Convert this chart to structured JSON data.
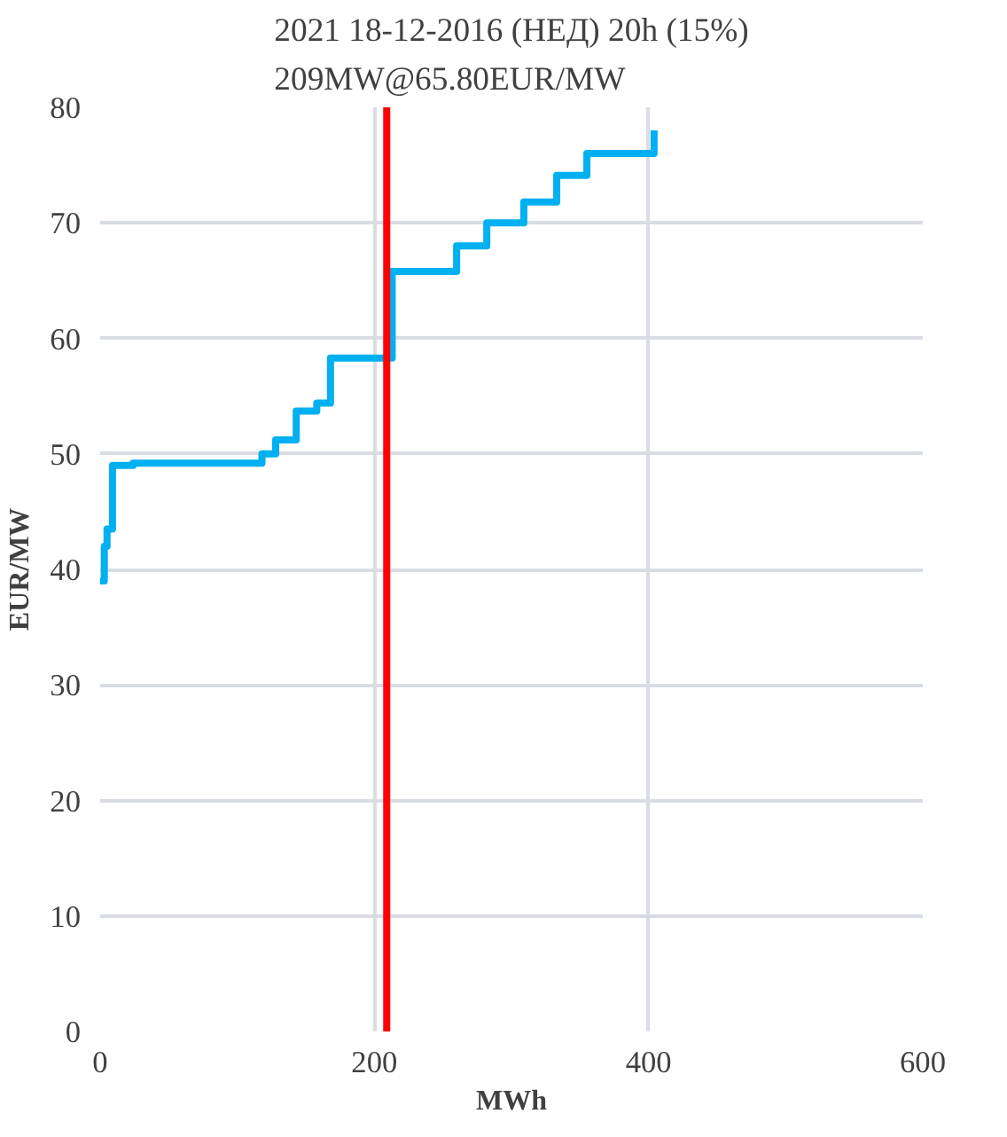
{
  "chart_data": {
    "type": "step",
    "title": "2021 18-12-2016 (НЕД) 20h (15%)\n209MW@65.80EUR/MW",
    "xlabel": "MWh",
    "ylabel": "EUR/MW",
    "x": [
      0,
      3,
      5,
      9,
      24,
      118,
      128,
      143,
      158,
      168,
      213,
      260,
      282,
      309,
      333,
      355,
      404
    ],
    "series": [
      {
        "color": "#00b0f0",
        "values": [
          39,
          42,
          43.5,
          49,
          49.2,
          50,
          51.2,
          53.7,
          54.4,
          58.3,
          65.8,
          68,
          70,
          71.8,
          74.1,
          76,
          78
        ]
      }
    ],
    "ref_lines": [
      {
        "axis": "x",
        "value": 209,
        "color": "#ff0000"
      }
    ],
    "xlim": [
      0,
      600
    ],
    "xticks": [
      0,
      200,
      400,
      600
    ],
    "ylim": [
      0,
      80
    ],
    "yticks": [
      0,
      10,
      20,
      30,
      40,
      50,
      60,
      70,
      80
    ],
    "grid": true
  }
}
